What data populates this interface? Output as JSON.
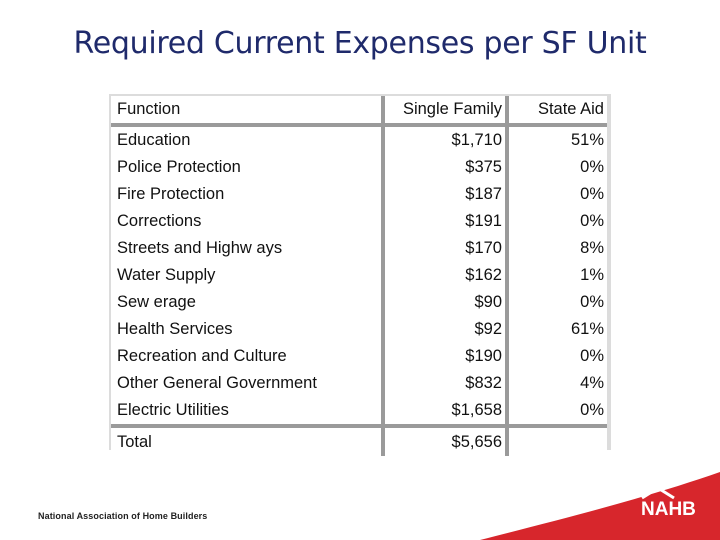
{
  "title": "Required Current Expenses per SF Unit",
  "table": {
    "headers": [
      "Function",
      "Single Family",
      "State Aid"
    ],
    "rows": [
      [
        "Education",
        "$1,710",
        "51%"
      ],
      [
        "Police Protection",
        "$375",
        "0%"
      ],
      [
        "Fire Protection",
        "$187",
        "0%"
      ],
      [
        "Corrections",
        "$191",
        "0%"
      ],
      [
        "Streets and Highw ays",
        "$170",
        "8%"
      ],
      [
        "Water Supply",
        "$162",
        "1%"
      ],
      [
        "Sew erage",
        "$90",
        "0%"
      ],
      [
        "Health Services",
        "$92",
        "61%"
      ],
      [
        "Recreation and Culture",
        "$190",
        "0%"
      ],
      [
        "Other General Government",
        "$832",
        "4%"
      ],
      [
        "Electric Utilities",
        "$1,658",
        "0%"
      ]
    ],
    "total": [
      "Total",
      "$5,656",
      ""
    ]
  },
  "footer": {
    "org_name": "National Association of Home Builders",
    "logo_text": "NAHB"
  },
  "colors": {
    "title": "#1f2a6b",
    "brand_red": "#d7262c"
  }
}
